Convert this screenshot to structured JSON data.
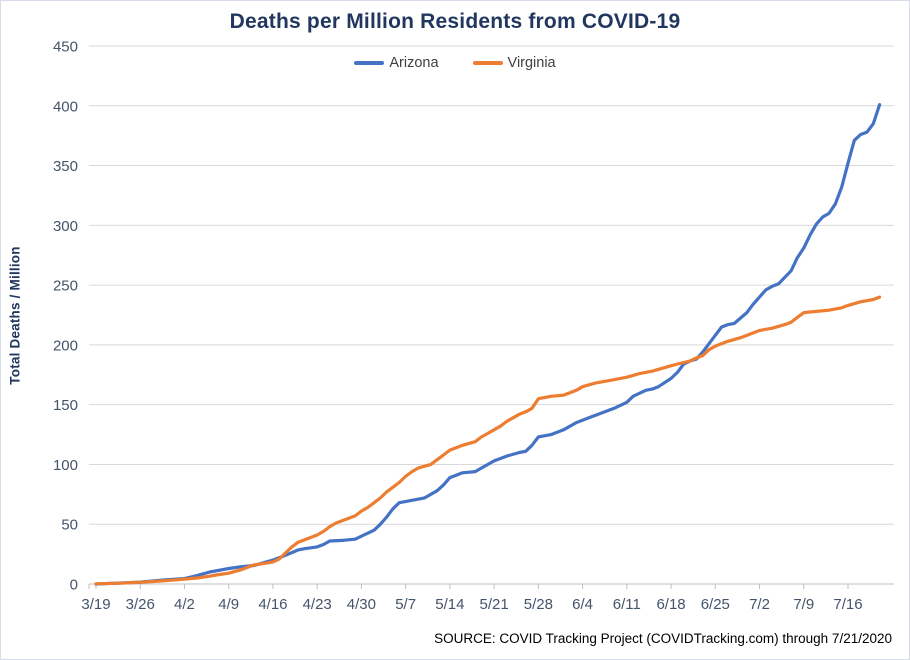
{
  "styles": {
    "background": "#FFFFFF",
    "border_color": "#D6DDE9",
    "grid_color": "#D9D9D9",
    "axis_line_color": "#BFBFBF",
    "tick_label_color": "#44546A",
    "title_color": "#21375F",
    "legend_text_color": "#404040",
    "source_text_color": "#000000"
  },
  "chart_data": {
    "type": "line",
    "title": "Deaths per Million Residents from COVID-19",
    "ylabel": "Total Deaths / Million",
    "xlabel": "",
    "source_note": "SOURCE: COVID Tracking Project (COVIDTracking.com) through 7/21/2020",
    "legend_position": "top-center",
    "grid": "horizontal-only",
    "ylim": [
      0,
      450
    ],
    "yticks": [
      0,
      50,
      100,
      150,
      200,
      250,
      300,
      350,
      400,
      450
    ],
    "x_axis": {
      "unit": "date, daily data from 3/19/2020 through 7/21/2020 (day index 0-124)",
      "tick_labels": [
        "3/19",
        "3/26",
        "4/2",
        "4/9",
        "4/16",
        "4/23",
        "4/30",
        "5/7",
        "5/14",
        "5/21",
        "5/28",
        "6/4",
        "6/11",
        "6/18",
        "6/25",
        "7/2",
        "7/9",
        "7/16"
      ],
      "tick_days": [
        0,
        7,
        14,
        21,
        28,
        35,
        42,
        49,
        56,
        63,
        70,
        77,
        84,
        91,
        98,
        105,
        112,
        119
      ],
      "range_days": [
        0,
        124
      ]
    },
    "series": [
      {
        "name": "Arizona",
        "color": "#4472C4",
        "points": [
          [
            0,
            0
          ],
          [
            2,
            0.4
          ],
          [
            4,
            0.8
          ],
          [
            7,
            1.6
          ],
          [
            9,
            2.5
          ],
          [
            11,
            3.4
          ],
          [
            13,
            4.2
          ],
          [
            14,
            4.5
          ],
          [
            16,
            7
          ],
          [
            18,
            10
          ],
          [
            20,
            12
          ],
          [
            21,
            13
          ],
          [
            23,
            14.5
          ],
          [
            25,
            15.5
          ],
          [
            26,
            17
          ],
          [
            28,
            20
          ],
          [
            30,
            24
          ],
          [
            32,
            28.5
          ],
          [
            33,
            29.5
          ],
          [
            35,
            31
          ],
          [
            36,
            33
          ],
          [
            37,
            36
          ],
          [
            39,
            36.5
          ],
          [
            41,
            37.5
          ],
          [
            42,
            40
          ],
          [
            44,
            45
          ],
          [
            45,
            50
          ],
          [
            46,
            56
          ],
          [
            47,
            63
          ],
          [
            48,
            68
          ],
          [
            50,
            70
          ],
          [
            52,
            72
          ],
          [
            54,
            78
          ],
          [
            55,
            83
          ],
          [
            56,
            89
          ],
          [
            58,
            93
          ],
          [
            60,
            94
          ],
          [
            61,
            97
          ],
          [
            63,
            103
          ],
          [
            64,
            105
          ],
          [
            65,
            107
          ],
          [
            67,
            110
          ],
          [
            68,
            111
          ],
          [
            69,
            116
          ],
          [
            70,
            123
          ],
          [
            72,
            125
          ],
          [
            74,
            129
          ],
          [
            76,
            135
          ],
          [
            78,
            139
          ],
          [
            80,
            143
          ],
          [
            82,
            147
          ],
          [
            84,
            152
          ],
          [
            85,
            157
          ],
          [
            87,
            162
          ],
          [
            88,
            163
          ],
          [
            89,
            165
          ],
          [
            91,
            172
          ],
          [
            92,
            177
          ],
          [
            93,
            184
          ],
          [
            94,
            186.5
          ],
          [
            95,
            188
          ],
          [
            96,
            194
          ],
          [
            97,
            201
          ],
          [
            98,
            208
          ],
          [
            99,
            215
          ],
          [
            100,
            217
          ],
          [
            101,
            218
          ],
          [
            103,
            227
          ],
          [
            104,
            234
          ],
          [
            105,
            240
          ],
          [
            106,
            246
          ],
          [
            107,
            249
          ],
          [
            108,
            251
          ],
          [
            110,
            262
          ],
          [
            111,
            273
          ],
          [
            112,
            281
          ],
          [
            113,
            292
          ],
          [
            114,
            301
          ],
          [
            115,
            307
          ],
          [
            116,
            310
          ],
          [
            117,
            318
          ],
          [
            118,
            332
          ],
          [
            119,
            352
          ],
          [
            120,
            371
          ],
          [
            121,
            376
          ],
          [
            122,
            378
          ],
          [
            123,
            385
          ],
          [
            124,
            401
          ]
        ]
      },
      {
        "name": "Virginia",
        "color": "#ED7D31",
        "points": [
          [
            0,
            0.2
          ],
          [
            3,
            0.6
          ],
          [
            5,
            0.9
          ],
          [
            7,
            1.5
          ],
          [
            9,
            2.1
          ],
          [
            11,
            2.8
          ],
          [
            13,
            3.6
          ],
          [
            14,
            4
          ],
          [
            16,
            5
          ],
          [
            18,
            6.5
          ],
          [
            19,
            7.5
          ],
          [
            21,
            9
          ],
          [
            22,
            10.5
          ],
          [
            23,
            12
          ],
          [
            24,
            14
          ],
          [
            25,
            16
          ],
          [
            27,
            17.5
          ],
          [
            28,
            18.5
          ],
          [
            29,
            21
          ],
          [
            30,
            26
          ],
          [
            31,
            31
          ],
          [
            32,
            35
          ],
          [
            34,
            39
          ],
          [
            35,
            41
          ],
          [
            36,
            44
          ],
          [
            37,
            48
          ],
          [
            38,
            51
          ],
          [
            39,
            53
          ],
          [
            41,
            57
          ],
          [
            42,
            61
          ],
          [
            43,
            64
          ],
          [
            44,
            68
          ],
          [
            45,
            72
          ],
          [
            46,
            77
          ],
          [
            47,
            81
          ],
          [
            48,
            85
          ],
          [
            49,
            90
          ],
          [
            50,
            94
          ],
          [
            51,
            97
          ],
          [
            53,
            100
          ],
          [
            54,
            104
          ],
          [
            55,
            108
          ],
          [
            56,
            112
          ],
          [
            58,
            116
          ],
          [
            60,
            119
          ],
          [
            61,
            123
          ],
          [
            62,
            126
          ],
          [
            63,
            129
          ],
          [
            64,
            132
          ],
          [
            65,
            136
          ],
          [
            66,
            139
          ],
          [
            67,
            142
          ],
          [
            68,
            144
          ],
          [
            69,
            147
          ],
          [
            70,
            155
          ],
          [
            72,
            157
          ],
          [
            74,
            158
          ],
          [
            75,
            160
          ],
          [
            76,
            162
          ],
          [
            77,
            165
          ],
          [
            79,
            168
          ],
          [
            81,
            170
          ],
          [
            83,
            172
          ],
          [
            84,
            173
          ],
          [
            86,
            176
          ],
          [
            88,
            178
          ],
          [
            90,
            181
          ],
          [
            92,
            184
          ],
          [
            94,
            186.5
          ],
          [
            95,
            189
          ],
          [
            96,
            191
          ],
          [
            97,
            196
          ],
          [
            98,
            199
          ],
          [
            100,
            203
          ],
          [
            102,
            206
          ],
          [
            104,
            210
          ],
          [
            105,
            212
          ],
          [
            107,
            214
          ],
          [
            109,
            217
          ],
          [
            110,
            219
          ],
          [
            111,
            223
          ],
          [
            112,
            227
          ],
          [
            114,
            228
          ],
          [
            116,
            229
          ],
          [
            118,
            231
          ],
          [
            119,
            233
          ],
          [
            121,
            236
          ],
          [
            123,
            238
          ],
          [
            124,
            240
          ]
        ]
      }
    ]
  }
}
